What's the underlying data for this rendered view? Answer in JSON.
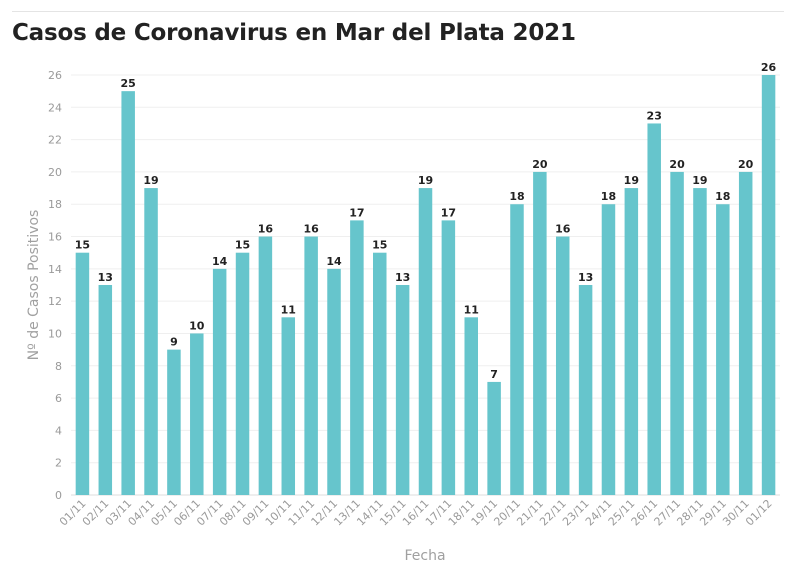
{
  "chart_data": {
    "type": "bar",
    "title": "Casos de Coronavirus en Mar del Plata 2021",
    "xlabel": "Fecha",
    "ylabel": "Nº de Casos Positivos",
    "categories": [
      "01/11",
      "02/11",
      "03/11",
      "04/11",
      "05/11",
      "06/11",
      "07/11",
      "08/11",
      "09/11",
      "10/11",
      "11/11",
      "12/11",
      "13/11",
      "14/11",
      "15/11",
      "16/11",
      "17/11",
      "18/11",
      "19/11",
      "20/11",
      "21/11",
      "22/11",
      "23/11",
      "24/11",
      "25/11",
      "26/11",
      "27/11",
      "28/11",
      "29/11",
      "30/11",
      "01/12"
    ],
    "values": [
      15,
      13,
      25,
      19,
      9,
      10,
      14,
      15,
      16,
      11,
      16,
      14,
      17,
      15,
      13,
      19,
      17,
      11,
      7,
      18,
      20,
      16,
      13,
      18,
      19,
      23,
      20,
      19,
      18,
      20,
      26
    ],
    "ylim": [
      0,
      26
    ],
    "yticks": [
      0,
      2,
      4,
      6,
      8,
      10,
      12,
      14,
      16,
      18,
      20,
      22,
      24,
      26
    ],
    "grid": true,
    "data_labels": true,
    "bar_color": "#66c5cc"
  }
}
